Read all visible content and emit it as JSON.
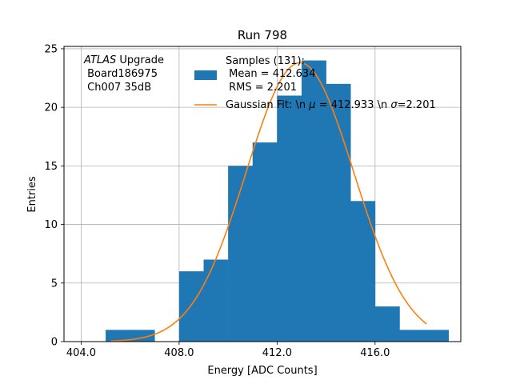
{
  "chart_data": {
    "type": "bar",
    "title": "Run 798",
    "xlabel": "Energy [ADC Counts]",
    "ylabel": "Entries",
    "xlim": [
      403.3,
      419.5
    ],
    "ylim": [
      0,
      25.2
    ],
    "xticks": [
      404,
      408,
      412,
      416
    ],
    "xtick_labels": [
      "404.0",
      "408.0",
      "412.0",
      "416.0"
    ],
    "yticks": [
      0,
      5,
      10,
      15,
      20,
      25
    ],
    "ytick_labels": [
      "0",
      "5",
      "10",
      "15",
      "20",
      "25"
    ],
    "grid": true,
    "bar_color": "#1f77b4",
    "fit_color": "#ff7f0e",
    "bins": [
      {
        "x0": 405,
        "x1": 406,
        "count": 1
      },
      {
        "x0": 406,
        "x1": 407,
        "count": 1
      },
      {
        "x0": 407,
        "x1": 408,
        "count": 0
      },
      {
        "x0": 408,
        "x1": 409,
        "count": 6
      },
      {
        "x0": 409,
        "x1": 410,
        "count": 7
      },
      {
        "x0": 410,
        "x1": 411,
        "count": 15
      },
      {
        "x0": 411,
        "x1": 412,
        "count": 17
      },
      {
        "x0": 412,
        "x1": 413,
        "count": 21
      },
      {
        "x0": 413,
        "x1": 414,
        "count": 24
      },
      {
        "x0": 414,
        "x1": 415,
        "count": 22
      },
      {
        "x0": 415,
        "x1": 416,
        "count": 12
      },
      {
        "x0": 416,
        "x1": 417,
        "count": 3
      },
      {
        "x0": 417,
        "x1": 418,
        "count": 1
      },
      {
        "x0": 418,
        "x1": 419,
        "count": 1
      }
    ],
    "fit": {
      "mu": 412.933,
      "sigma": 2.201,
      "amplitude": 23.8,
      "x_range": [
        405.2,
        418.1
      ]
    },
    "legend_location": "upper-right",
    "legend": {
      "hist_lines": [
        "Samples (131):",
        " Mean = 412.634",
        " RMS = 2.201"
      ],
      "fit_label_parts": [
        "Gaussian Fit: \\n ",
        "μ",
        " = 412.933 \\n ",
        "σ",
        "=2.201"
      ]
    },
    "annotation": {
      "italic": "ATLAS",
      "rest": " Upgrade",
      "lines": [
        " Board186975",
        " Ch007 35dB"
      ]
    }
  }
}
